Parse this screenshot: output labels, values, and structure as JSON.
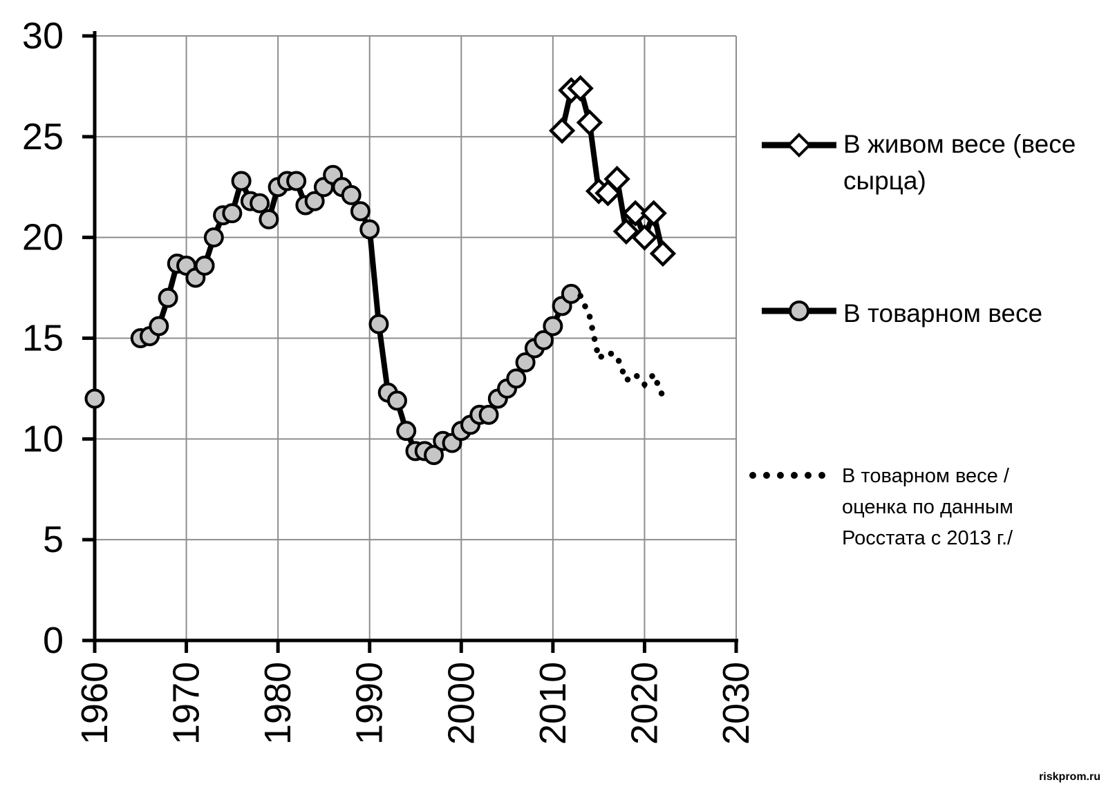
{
  "watermark": {
    "text": "riskprom.ru"
  },
  "legend": {
    "items": [
      {
        "label": "В живом весе (весе сырца)",
        "marker": "line-diamond"
      },
      {
        "label": "В товарном весе",
        "marker": "line-circle"
      },
      {
        "label": "В товарном весе /оценка по данным Росстата с 2013 г./",
        "marker": "dotted-line"
      }
    ]
  },
  "colors": {
    "line": "#000000",
    "grid": "#8d8d8d",
    "circle_fill": "#c6c6c6",
    "diamond_fill": "#ffffff",
    "background": "#ffffff",
    "text": "#000000"
  },
  "chart_data": {
    "type": "line",
    "title": "",
    "xlabel": "",
    "ylabel": "",
    "xlim": [
      1958.5,
      2030
    ],
    "ylim": [
      0,
      30
    ],
    "x_ticks": [
      1960,
      1970,
      1980,
      1990,
      2000,
      2010,
      2020,
      2030
    ],
    "y_ticks": [
      0,
      5,
      10,
      15,
      20,
      25,
      30
    ],
    "grid": true,
    "legend_position": "right",
    "series": [
      {
        "name": "В живом весе (весе сырца)",
        "style": "solid-diamond",
        "points": [
          [
            2011,
            25.3
          ],
          [
            2012,
            27.3
          ],
          [
            2013,
            27.4
          ],
          [
            2014,
            25.7
          ],
          [
            2015,
            22.3
          ],
          [
            2016,
            22.2
          ],
          [
            2017,
            22.9
          ],
          [
            2018,
            20.3
          ],
          [
            2019,
            21.2
          ],
          [
            2020,
            20.0
          ],
          [
            2021,
            21.2
          ],
          [
            2022,
            19.2
          ]
        ]
      },
      {
        "name": "В товарном весе",
        "style": "solid-circle",
        "points": [
          [
            1960,
            12.0
          ],
          [
            1965,
            15.0
          ],
          [
            1966,
            15.1
          ],
          [
            1967,
            15.6
          ],
          [
            1968,
            17.0
          ],
          [
            1969,
            18.7
          ],
          [
            1970,
            18.6
          ],
          [
            1971,
            18.0
          ],
          [
            1972,
            18.6
          ],
          [
            1973,
            20.0
          ],
          [
            1974,
            21.1
          ],
          [
            1975,
            21.2
          ],
          [
            1976,
            22.8
          ],
          [
            1977,
            21.8
          ],
          [
            1978,
            21.7
          ],
          [
            1979,
            20.9
          ],
          [
            1980,
            22.5
          ],
          [
            1981,
            22.8
          ],
          [
            1982,
            22.8
          ],
          [
            1983,
            21.6
          ],
          [
            1984,
            21.8
          ],
          [
            1985,
            22.5
          ],
          [
            1986,
            23.1
          ],
          [
            1987,
            22.5
          ],
          [
            1988,
            22.1
          ],
          [
            1989,
            21.3
          ],
          [
            1990,
            20.4
          ],
          [
            1991,
            15.7
          ],
          [
            1992,
            12.3
          ],
          [
            1993,
            11.9
          ],
          [
            1994,
            10.4
          ],
          [
            1995,
            9.4
          ],
          [
            1996,
            9.4
          ],
          [
            1997,
            9.2
          ],
          [
            1998,
            9.9
          ],
          [
            1999,
            9.8
          ],
          [
            2000,
            10.4
          ],
          [
            2001,
            10.7
          ],
          [
            2002,
            11.2
          ],
          [
            2003,
            11.2
          ],
          [
            2004,
            12.0
          ],
          [
            2005,
            12.5
          ],
          [
            2006,
            13.0
          ],
          [
            2007,
            13.8
          ],
          [
            2008,
            14.5
          ],
          [
            2009,
            14.9
          ],
          [
            2010,
            15.6
          ],
          [
            2011,
            16.6
          ],
          [
            2012,
            17.2
          ]
        ]
      },
      {
        "name": "В товарном весе /оценка по данным Росстата с 2013 г./",
        "style": "dotted",
        "points": [
          [
            2013,
            17.1
          ],
          [
            2014,
            16.1
          ],
          [
            2015,
            14.0
          ],
          [
            2016,
            14.3
          ],
          [
            2017,
            14.1
          ],
          [
            2018,
            12.9
          ],
          [
            2019,
            13.2
          ],
          [
            2020,
            12.7
          ],
          [
            2021,
            13.2
          ],
          [
            2022,
            12.1
          ]
        ]
      }
    ]
  }
}
